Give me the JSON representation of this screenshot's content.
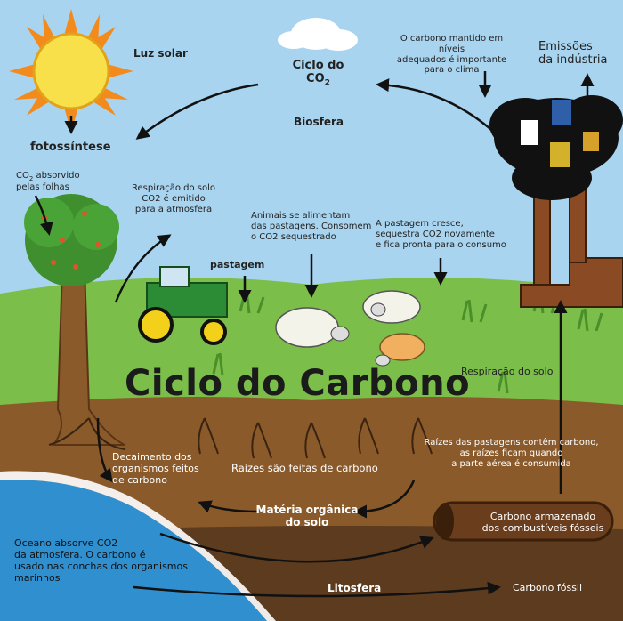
{
  "title": "Ciclo do Carbono",
  "header": {
    "cycle_line1": "Ciclo do",
    "cycle_line2": "CO",
    "cycle_sub": "2",
    "biosphere": "Biosfera"
  },
  "labels": {
    "sunlight": "Luz solar",
    "photosynthesis": "fotossíntese",
    "co2_absorbed_a": "CO",
    "co2_absorbed_sub": "2",
    "co2_absorbed_b": " absorvido",
    "co2_absorbed_c": "pelas folhas",
    "soil_resp_top": [
      "Respiração do solo",
      "CO2 é emitido",
      "para a atmosfera"
    ],
    "animals": [
      "Animais se alimentam",
      "das pastagens. Consomem",
      "o CO2 sequestrado"
    ],
    "pasture_grows": [
      "A pastagem cresce,",
      "sequestra CO2 novamente",
      "e fica pronta para o consumo"
    ],
    "pasture": "pastagem",
    "carbon_kept": [
      "O carbono mantido em níveis",
      "adequados é importante",
      "para o clima"
    ],
    "industry": [
      "Emissões",
      "da indústria"
    ],
    "soil_resp_right": "Respiração do solo",
    "decay": [
      "Decaimento dos",
      "organismos feitos",
      "de carbono"
    ],
    "roots": "Raízes são feitas de carbono",
    "roots_carbon": [
      "Raízes das pastagens contêm carbono,",
      "as raízes ficam quando",
      "a parte aérea é consumida"
    ],
    "organic_matter": [
      "Matéria orgânica",
      "do solo"
    ],
    "stored_carbon": [
      "Carbono armazenado",
      "dos combustíveis fósseis"
    ],
    "ocean": [
      "Oceano absorve CO2",
      "da atmosfera. O carbono é",
      "usado nas conchas dos organismos",
      "marinhos"
    ],
    "lithosphere": "Litosfera",
    "fossil": "Carbono fóssil"
  },
  "colors": {
    "sky": "#a9d4ef",
    "grass": "#7bbf4a",
    "soil": "#8a5a2b",
    "deep_soil": "#5c3b1e",
    "sea": "#2f8fcf",
    "sun": "#f7e04a",
    "smoke": "#111111"
  }
}
